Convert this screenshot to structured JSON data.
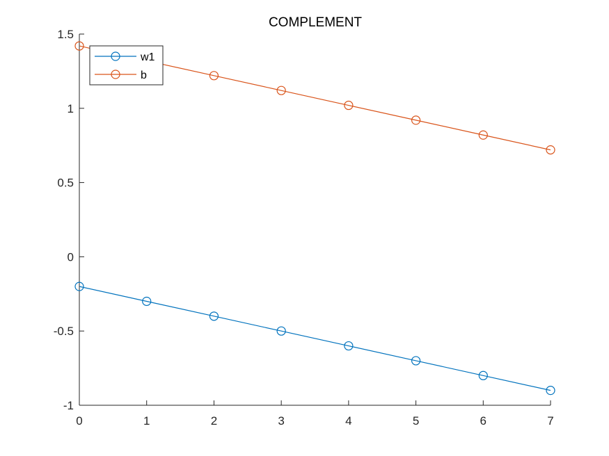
{
  "chart_data": {
    "type": "line",
    "title": "COMPLEMENT",
    "xlabel": "",
    "ylabel": "",
    "xlim": [
      0,
      7
    ],
    "ylim": [
      -1,
      1.5
    ],
    "xticks": [
      0,
      1,
      2,
      3,
      4,
      5,
      6,
      7
    ],
    "yticks": [
      -1,
      -0.5,
      0,
      0.5,
      1,
      1.5
    ],
    "xtick_labels": [
      "0",
      "1",
      "2",
      "3",
      "4",
      "5",
      "6",
      "7"
    ],
    "ytick_labels": [
      "-1",
      "-0.5",
      "0",
      "0.5",
      "1",
      "1.5"
    ],
    "grid": false,
    "legend_position": "top-left",
    "marker": "circle",
    "x": [
      0,
      1,
      2,
      3,
      4,
      5,
      6,
      7
    ],
    "series": [
      {
        "name": "w1",
        "color": "#0072BD",
        "values": [
          -0.2,
          -0.3,
          -0.4,
          -0.5,
          -0.6,
          -0.7,
          -0.8,
          -0.9
        ]
      },
      {
        "name": "b",
        "color": "#D95319",
        "values": [
          1.42,
          1.32,
          1.22,
          1.12,
          1.02,
          0.92,
          0.82,
          0.72
        ]
      }
    ]
  }
}
